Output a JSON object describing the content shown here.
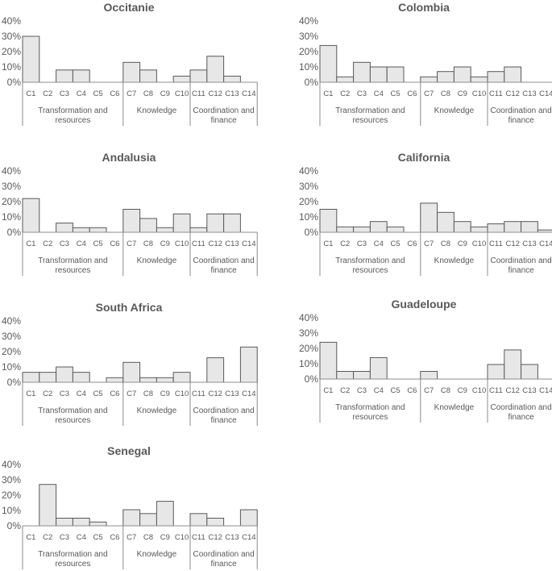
{
  "chart_data": {
    "type": "bar",
    "ylim": [
      0,
      40
    ],
    "yticks": [
      "0%",
      "10%",
      "20%",
      "30%",
      "40%"
    ],
    "categories": [
      "C1",
      "C2",
      "C3",
      "C4",
      "C5",
      "C6",
      "C7",
      "C8",
      "C9",
      "C10",
      "C11",
      "C12",
      "C13",
      "C14"
    ],
    "groups": [
      {
        "label_lines": [
          "Transformation and",
          "resources"
        ],
        "categories": [
          "C1",
          "C2",
          "C3",
          "C4",
          "C5",
          "C6"
        ]
      },
      {
        "label_lines": [
          "Knowledge"
        ],
        "categories": [
          "C7",
          "C8",
          "C9",
          "C10"
        ]
      },
      {
        "label_lines": [
          "Coordination and",
          "finance"
        ],
        "categories": [
          "C11",
          "C12",
          "C13",
          "C14"
        ]
      }
    ],
    "charts": [
      {
        "title": "Occitanie",
        "values": [
          30,
          0,
          8,
          8,
          0,
          0,
          13,
          8,
          0,
          4,
          8,
          17,
          4,
          0
        ]
      },
      {
        "title": "Colombia",
        "values": [
          24,
          3.5,
          13,
          10,
          10,
          0,
          3.5,
          7,
          10,
          3.5,
          7,
          10,
          0,
          0
        ]
      },
      {
        "title": "Andalusia",
        "values": [
          22,
          0,
          6,
          3,
          3,
          0,
          15,
          9,
          3,
          12,
          3,
          12,
          12,
          0
        ]
      },
      {
        "title": "California",
        "values": [
          15,
          3.5,
          3.5,
          7,
          3.5,
          0,
          19,
          13,
          7,
          3.5,
          5.5,
          7,
          7,
          1.5
        ]
      },
      {
        "title": "South Africa",
        "values": [
          6.5,
          6.5,
          10,
          6.5,
          0,
          3,
          13,
          3,
          3,
          6.5,
          0,
          16,
          0,
          23
        ]
      },
      {
        "title": "Guadeloupe",
        "values": [
          24,
          5,
          5,
          14,
          0,
          0,
          5,
          0,
          0,
          0,
          9.5,
          19,
          9.5,
          0
        ]
      },
      {
        "title": "Senegal",
        "values": [
          0,
          27,
          5,
          5,
          2.5,
          0,
          10.5,
          8,
          16,
          0,
          8,
          5,
          0,
          10.5
        ]
      }
    ]
  }
}
